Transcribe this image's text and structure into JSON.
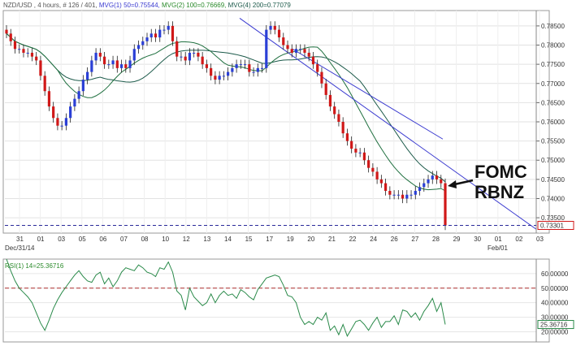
{
  "header": {
    "symbol": "NZD/USD , 4 hours, # 126 / 401,",
    "mvg1": "MVG(1) 50=0.75544,",
    "mvg2": "MVG(2) 100=0.76669,",
    "mvg4": "MVG(4) 200=0.77079"
  },
  "chart_data": [
    {
      "type": "candlestick",
      "title": "NZD/USD , 4 hours, # 126 / 401",
      "x_tick_labels": [
        "31",
        "01",
        "03",
        "05",
        "06",
        "07",
        "08",
        "10",
        "12",
        "13",
        "14",
        "15",
        "17",
        "19",
        "20",
        "21",
        "22",
        "24",
        "26",
        "27",
        "28",
        "29",
        "30",
        "01",
        "02",
        "03"
      ],
      "x_sub_labels": [
        "Dec/31/14",
        "Feb/01"
      ],
      "y_ticks": [
        0.735,
        0.74,
        0.745,
        0.75,
        0.755,
        0.76,
        0.765,
        0.77,
        0.775,
        0.78,
        0.785
      ],
      "y_tick_labels": [
        "0.73500",
        "0.74000",
        "0.74500",
        "0.75000",
        "0.75500",
        "0.76000",
        "0.76500",
        "0.77000",
        "0.77500",
        "0.78000",
        "0.78500"
      ],
      "ylim": [
        0.731,
        0.789
      ],
      "last_price": 0.73301,
      "last_price_label": "0.73301",
      "close_series": [
        0.783,
        0.781,
        0.779,
        0.779,
        0.778,
        0.778,
        0.777,
        0.776,
        0.772,
        0.768,
        0.764,
        0.761,
        0.759,
        0.759,
        0.761,
        0.764,
        0.766,
        0.768,
        0.771,
        0.773,
        0.776,
        0.778,
        0.777,
        0.775,
        0.775,
        0.776,
        0.774,
        0.775,
        0.774,
        0.776,
        0.779,
        0.78,
        0.781,
        0.782,
        0.783,
        0.782,
        0.784,
        0.784,
        0.785,
        0.781,
        0.777,
        0.777,
        0.776,
        0.778,
        0.778,
        0.777,
        0.775,
        0.774,
        0.772,
        0.771,
        0.772,
        0.772,
        0.773,
        0.774,
        0.775,
        0.775,
        0.775,
        0.773,
        0.773,
        0.774,
        0.774,
        0.784,
        0.785,
        0.784,
        0.782,
        0.78,
        0.779,
        0.778,
        0.779,
        0.779,
        0.778,
        0.777,
        0.775,
        0.773,
        0.77,
        0.767,
        0.764,
        0.762,
        0.76,
        0.757,
        0.755,
        0.753,
        0.752,
        0.752,
        0.75,
        0.748,
        0.747,
        0.745,
        0.744,
        0.742,
        0.741,
        0.741,
        0.741,
        0.74,
        0.741,
        0.741,
        0.742,
        0.743,
        0.744,
        0.745,
        0.746,
        0.745,
        0.744,
        0.733
      ],
      "moving_averages": [
        {
          "name": "MVG(1) 50",
          "value": 0.75544,
          "color": "#4040c0"
        },
        {
          "name": "MVG(2) 100",
          "value": 0.76669,
          "color": "#207040"
        },
        {
          "name": "MVG(4) 200",
          "value": 0.77079,
          "color": "#1c5a4a"
        }
      ],
      "annotations": [
        "FOMC",
        "RBNZ"
      ]
    },
    {
      "type": "line",
      "title": "RSI(1) 14=25.36716",
      "series": [
        {
          "name": "RSI(1) 14",
          "values": [
            70,
            62,
            55,
            50,
            47,
            44,
            40,
            33,
            26,
            21,
            28,
            36,
            42,
            47,
            51,
            55,
            59,
            62,
            58,
            55,
            54,
            59,
            61,
            53,
            57,
            51,
            55,
            61,
            64,
            63,
            62,
            66,
            64,
            61,
            60,
            58,
            64,
            63,
            68,
            61,
            48,
            45,
            35,
            50,
            44,
            41,
            38,
            40,
            46,
            40,
            45,
            48,
            45,
            46,
            43,
            49,
            47,
            44,
            42,
            49,
            53,
            57,
            58,
            59,
            58,
            52,
            45,
            44,
            40,
            30,
            25,
            27,
            25,
            30,
            28,
            33,
            21,
            24,
            18,
            25,
            17,
            22,
            27,
            28,
            25,
            21,
            26,
            30,
            23,
            27,
            27,
            31,
            25,
            35,
            34,
            30,
            33,
            28,
            34,
            38,
            43,
            34,
            40,
            25
          ]
        }
      ],
      "y_ticks": [
        20,
        30,
        40,
        50,
        60
      ],
      "y_tick_labels": [
        "20.00000",
        "30.00000",
        "40.00000",
        "50.00000",
        "60.00000"
      ],
      "ylim": [
        13,
        70
      ],
      "reference_line": 50,
      "last_value_label": "25.36716"
    }
  ]
}
